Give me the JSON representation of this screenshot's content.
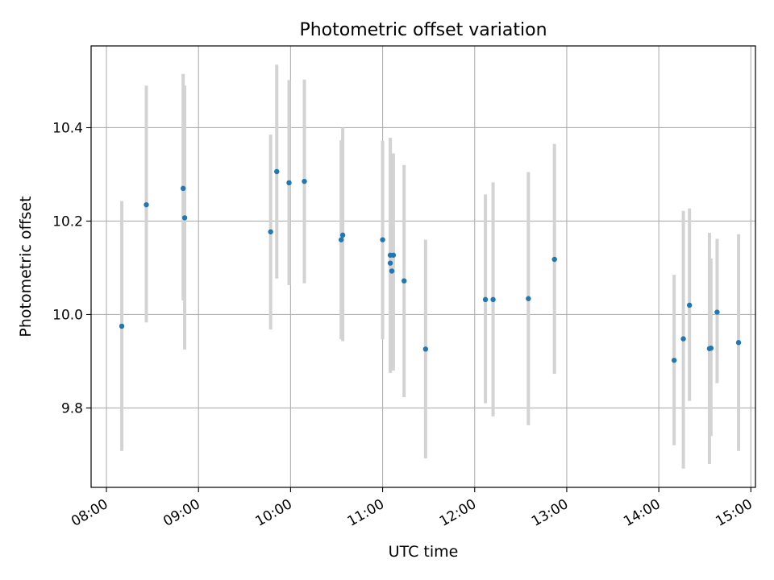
{
  "chart_data": {
    "type": "scatter",
    "title": "Photometric offset variation",
    "xlabel": "UTC time",
    "ylabel": "Photometric offset",
    "x_axis_kind": "time",
    "x_range": [
      "07:50",
      "15:03"
    ],
    "ylim": [
      9.63,
      10.575
    ],
    "x_ticks": [
      "08:00",
      "09:00",
      "10:00",
      "11:00",
      "12:00",
      "13:00",
      "14:00",
      "15:00"
    ],
    "y_ticks": [
      9.8,
      10.0,
      10.2,
      10.4
    ],
    "y_tick_labels": [
      "9.8",
      "10.0",
      "10.2",
      "10.4"
    ],
    "grid": true,
    "legend": "none",
    "colors": {
      "points": "#1f77b4",
      "errorbars": "#d3d3d3",
      "grid": "#b0b0b0"
    },
    "series": [
      {
        "x": [
          "08:10",
          "08:26",
          "08:50",
          "08:51",
          "09:47",
          "09:51",
          "09:59",
          "10:09",
          "10:33",
          "10:34",
          "11:00",
          "11:05",
          "11:05",
          "11:06",
          "11:07",
          "11:14",
          "11:28",
          "12:07",
          "12:12",
          "12:35",
          "12:52",
          "14:10",
          "14:16",
          "14:20",
          "14:33",
          "14:34",
          "14:38",
          "14:52"
        ],
        "y": [
          9.975,
          10.235,
          10.27,
          10.207,
          10.177,
          10.306,
          10.282,
          10.285,
          10.16,
          10.17,
          10.16,
          10.127,
          10.11,
          10.093,
          10.127,
          10.072,
          9.926,
          10.032,
          10.032,
          10.034,
          10.118,
          9.902,
          9.948,
          10.02,
          9.927,
          9.928,
          10.005,
          9.94
        ],
        "yerr_low": [
          9.708,
          9.983,
          10.03,
          9.925,
          9.968,
          10.077,
          10.063,
          10.067,
          9.947,
          9.943,
          9.947,
          9.877,
          9.875,
          9.9,
          9.88,
          9.823,
          9.692,
          9.81,
          9.782,
          9.763,
          9.873,
          9.72,
          9.67,
          9.815,
          9.68,
          9.74,
          9.853,
          9.708
        ],
        "yerr_high": [
          10.243,
          10.49,
          10.515,
          10.49,
          10.385,
          10.535,
          10.502,
          10.503,
          10.373,
          10.4,
          10.372,
          10.378,
          10.378,
          10.29,
          10.345,
          10.32,
          10.16,
          10.257,
          10.283,
          10.305,
          10.365,
          10.085,
          10.222,
          10.227,
          10.175,
          10.12,
          10.162,
          10.172
        ]
      }
    ]
  }
}
